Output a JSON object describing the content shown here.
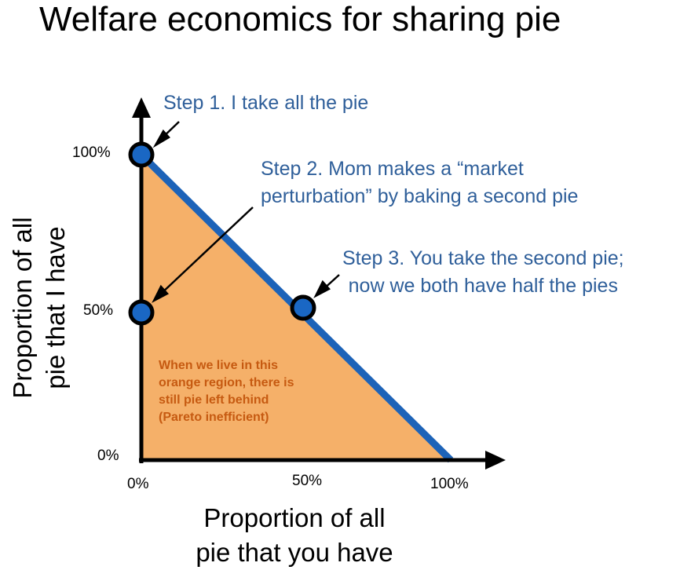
{
  "title": "Welfare economics for sharing pie",
  "steps": {
    "step1": "Step 1. I take all the pie",
    "step2_line1": "Step 2. Mom makes a “market",
    "step2_line2": "perturbation” by baking a second pie",
    "step3_line1": "Step 3. You take the second pie;",
    "step3_line2": "now we both have half the pies"
  },
  "axes": {
    "y_label_line1": "Proportion of all",
    "y_label_line2": "pie that I have",
    "x_label_line1": "Proportion of all",
    "x_label_line2": "pie that you have",
    "y_ticks": [
      "100%",
      "50%",
      "0%"
    ],
    "x_ticks": [
      "0%",
      "50%",
      "100%"
    ]
  },
  "region_note": {
    "line1": "When we live in this",
    "line2": "orange region, there is",
    "line3": "still pie left behind",
    "line4": "(Pareto inefficient)"
  },
  "colors": {
    "region_fill": "#f5b069",
    "frontier": "#1d63b8",
    "point_fill": "#1a67c4",
    "step_text": "#2f5f9a",
    "region_text": "#c65a11"
  }
}
